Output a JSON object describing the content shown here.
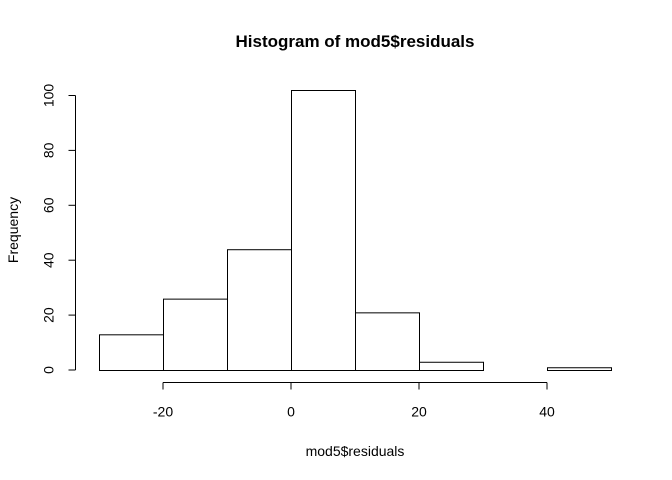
{
  "chart_data": {
    "type": "bar",
    "title": "Histogram of mod5$residuals",
    "xlabel": "mod5$residuals",
    "ylabel": "Frequency",
    "bins": [
      {
        "x0": -30,
        "x1": -20,
        "count": 13
      },
      {
        "x0": -20,
        "x1": -10,
        "count": 26
      },
      {
        "x0": -10,
        "x1": 0,
        "count": 44
      },
      {
        "x0": 0,
        "x1": 10,
        "count": 102
      },
      {
        "x0": 10,
        "x1": 20,
        "count": 21
      },
      {
        "x0": 20,
        "x1": 30,
        "count": 3
      },
      {
        "x0": 30,
        "x1": 40,
        "count": 0
      },
      {
        "x0": 40,
        "x1": 50,
        "count": 1
      }
    ],
    "xlim": [
      -30,
      50
    ],
    "ylim": [
      0,
      102
    ],
    "x_ticks": [
      -20,
      0,
      20,
      40
    ],
    "y_ticks": [
      0,
      20,
      40,
      60,
      80,
      100
    ],
    "grid": false,
    "bar_fill": "#ffffff",
    "bar_stroke": "#000000"
  }
}
